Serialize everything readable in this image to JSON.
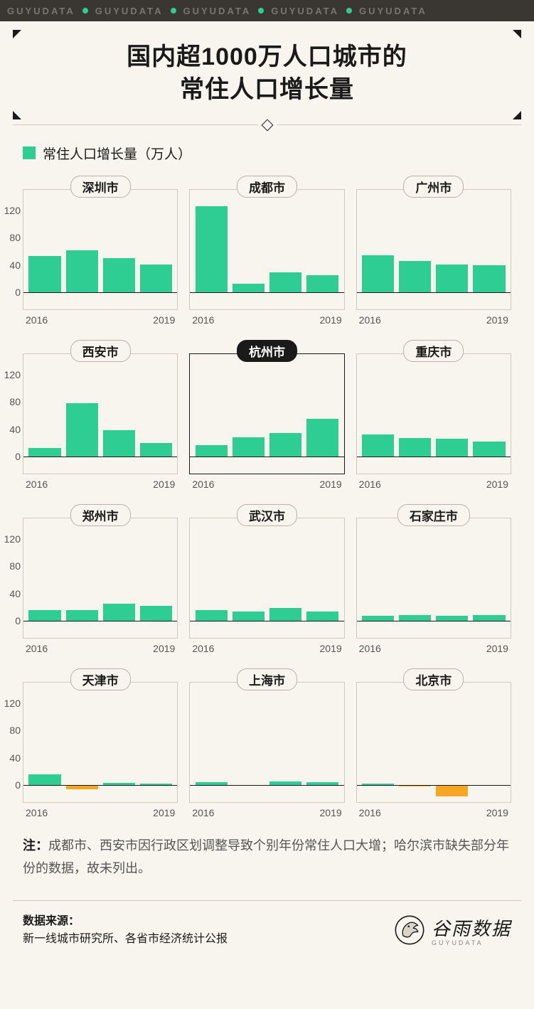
{
  "topbar": {
    "word": "GUYUDATA",
    "dot_color": "#2ecd94",
    "repeat": 5
  },
  "title": {
    "line1": "国内超1000万人口城市的",
    "line2": "常住人口增长量"
  },
  "legend": {
    "swatch_color": "#2ecd94",
    "label": "常住人口增长量（万人）"
  },
  "axes": {
    "ymin": -25,
    "ymax": 140,
    "yticks": [
      0,
      40,
      80,
      120
    ],
    "xstart": "2016",
    "xend": "2019",
    "tick_color": "#545454",
    "tick_fontsize": 14
  },
  "colors": {
    "bar_positive": "#2ecd94",
    "bar_negative": "#f5a623",
    "panel_border": "#cfcabd",
    "baseline": "#1a1a1a",
    "background": "#f8f5ee",
    "highlight_border": "#1a1a1a"
  },
  "panels": [
    {
      "name": "深圳市",
      "values": [
        53,
        61,
        50,
        41
      ],
      "highlight": false
    },
    {
      "name": "成都市",
      "values": [
        126,
        12,
        29,
        25
      ],
      "highlight": false
    },
    {
      "name": "广州市",
      "values": [
        54,
        46,
        41,
        40
      ],
      "highlight": false
    },
    {
      "name": "西安市",
      "values": [
        12,
        78,
        39,
        20
      ],
      "highlight": false
    },
    {
      "name": "杭州市",
      "values": [
        17,
        28,
        34,
        55
      ],
      "highlight": true
    },
    {
      "name": "重庆市",
      "values": [
        32,
        27,
        26,
        22
      ],
      "highlight": false
    },
    {
      "name": "郑州市",
      "values": [
        15,
        16,
        25,
        22
      ],
      "highlight": false
    },
    {
      "name": "武汉市",
      "values": [
        16,
        13,
        19,
        13
      ],
      "highlight": false
    },
    {
      "name": "石家庄市",
      "values": [
        7,
        8,
        7,
        8
      ],
      "highlight": false
    },
    {
      "name": "天津市",
      "values": [
        15,
        -6,
        3,
        2
      ],
      "highlight": false
    },
    {
      "name": "上海市",
      "values": [
        4,
        -1,
        5,
        4
      ],
      "highlight": false
    },
    {
      "name": "北京市",
      "values": [
        2,
        -2,
        -17,
        -1
      ],
      "highlight": false
    }
  ],
  "note": {
    "prefix": "注：",
    "body": "成都市、西安市因行政区划调整导致个别年份常住人口大增；哈尔滨市缺失部分年份的数据，故未列出。"
  },
  "footer": {
    "source_title": "数据来源：",
    "source_body": "新一线城市研究所、各省市经济统计公报",
    "logo_cn": "谷雨数据",
    "logo_en": "GUYUDATA"
  }
}
